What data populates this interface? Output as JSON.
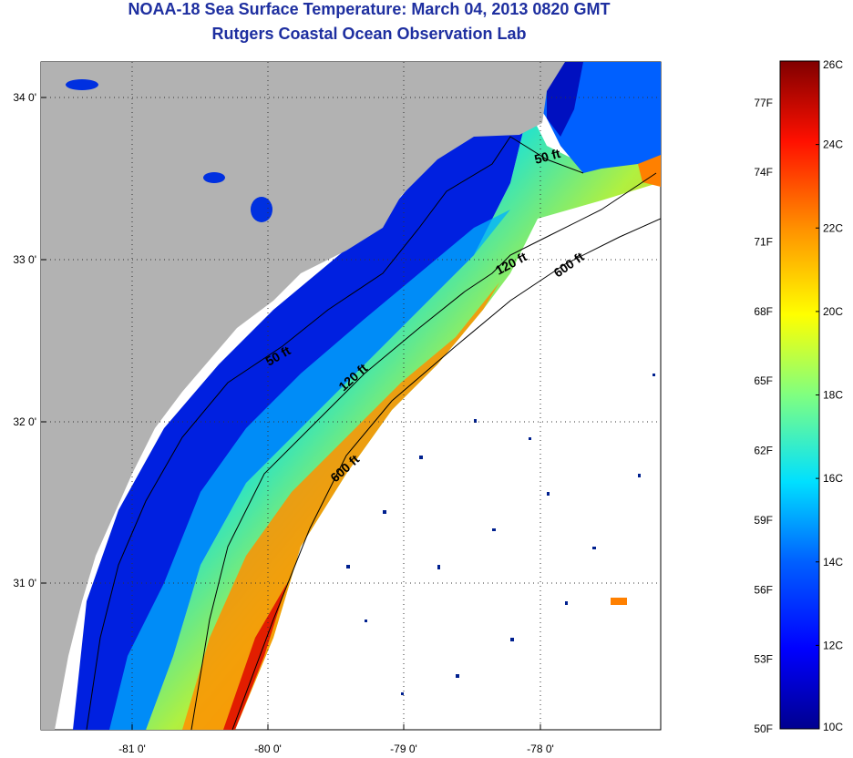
{
  "header": {
    "title": "NOAA-18 Sea Surface Temperature:  March 04, 2013 0820 GMT",
    "subtitle": "Rutgers Coastal Ocean Observation Lab"
  },
  "map": {
    "lon_ticks": [
      {
        "value": -81,
        "label": "-81 0'"
      },
      {
        "value": -80,
        "label": "-80 0'"
      },
      {
        "value": -79,
        "label": "-79 0'"
      },
      {
        "value": -78,
        "label": "-78 0'"
      }
    ],
    "lat_ticks": [
      {
        "value": 34,
        "label": "34 0'"
      },
      {
        "value": 33,
        "label": "33 0'"
      },
      {
        "value": 32,
        "label": "32 0'"
      },
      {
        "value": 31,
        "label": "31 0'"
      }
    ],
    "depth_labels": [
      "50 ft",
      "120 ft",
      "600 ft",
      "50 ft",
      "120 ft",
      "600 ft"
    ],
    "colors": {
      "land": "#b2b2b2",
      "no_data": "#ffffff",
      "contour": "#000000"
    }
  },
  "colorbar": {
    "celsius_labels": [
      "26C",
      "24C",
      "22C",
      "20C",
      "18C",
      "16C",
      "14C",
      "12C",
      "10C"
    ],
    "fahrenheit_labels": [
      "77F",
      "74F",
      "71F",
      "68F",
      "65F",
      "62F",
      "59F",
      "56F",
      "53F",
      "50F"
    ],
    "colormap": [
      "#00008f",
      "#0000ff",
      "#0080ff",
      "#00ffff",
      "#80ff80",
      "#ffff00",
      "#ff8000",
      "#ff0000",
      "#800000"
    ]
  }
}
